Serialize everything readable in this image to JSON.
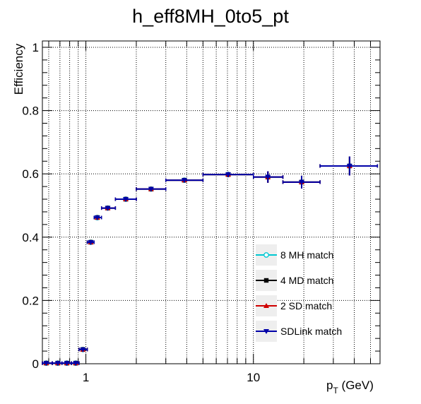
{
  "chart_data": {
    "type": "scatter",
    "title": "h_eff8MH_0to5_pt",
    "ylabel": "Efficiency",
    "xlabel_main": "p",
    "xlabel_sub": "T",
    "xlabel_unit": " (GeV)",
    "xscale": "log",
    "xlim": [
      0.55,
      57
    ],
    "ylim": [
      0,
      1.02
    ],
    "grid": true,
    "legend_position": "bottom-right",
    "x_tick_labels": [
      {
        "value": 1,
        "label": "1"
      },
      {
        "value": 10,
        "label": "10"
      }
    ],
    "y_tick_labels": [
      {
        "value": 0,
        "label": "0"
      },
      {
        "value": 0.2,
        "label": "0.2"
      },
      {
        "value": 0.4,
        "label": "0.4"
      },
      {
        "value": 0.6,
        "label": "0.6"
      },
      {
        "value": 0.8,
        "label": "0.8"
      },
      {
        "value": 1,
        "label": "1"
      }
    ],
    "series": [
      {
        "name": "8 MH match",
        "color": "#00c8d2",
        "marker": "open-circle",
        "points": [
          {
            "x": 0.58,
            "xlo": 0.55,
            "xhi": 0.63,
            "y": 0.002,
            "err": 0.001
          },
          {
            "x": 0.68,
            "xlo": 0.63,
            "xhi": 0.72,
            "y": 0.002,
            "err": 0.001
          },
          {
            "x": 0.77,
            "xlo": 0.72,
            "xhi": 0.82,
            "y": 0.002,
            "err": 0.001
          },
          {
            "x": 0.87,
            "xlo": 0.82,
            "xhi": 0.91,
            "y": 0.002,
            "err": 0.001
          },
          {
            "x": 0.96,
            "xlo": 0.91,
            "xhi": 1.02,
            "y": 0.045,
            "err": 0.004
          },
          {
            "x": 1.07,
            "xlo": 1.02,
            "xhi": 1.12,
            "y": 0.384,
            "err": 0.005
          },
          {
            "x": 1.17,
            "xlo": 1.12,
            "xhi": 1.24,
            "y": 0.462,
            "err": 0.005
          },
          {
            "x": 1.35,
            "xlo": 1.24,
            "xhi": 1.5,
            "y": 0.492,
            "err": 0.005
          },
          {
            "x": 1.73,
            "xlo": 1.5,
            "xhi": 2.0,
            "y": 0.52,
            "err": 0.005
          },
          {
            "x": 2.45,
            "xlo": 2.0,
            "xhi": 3.0,
            "y": 0.552,
            "err": 0.005
          },
          {
            "x": 3.87,
            "xlo": 3.0,
            "xhi": 5.0,
            "y": 0.58,
            "err": 0.006
          },
          {
            "x": 7.07,
            "xlo": 5.0,
            "xhi": 10.0,
            "y": 0.598,
            "err": 0.008
          },
          {
            "x": 12.2,
            "xlo": 10.0,
            "xhi": 15.0,
            "y": 0.59,
            "err": 0.018
          },
          {
            "x": 19.4,
            "xlo": 15.0,
            "xhi": 25.0,
            "y": 0.574,
            "err": 0.02
          },
          {
            "x": 37.5,
            "xlo": 25.0,
            "xhi": 55.0,
            "y": 0.625,
            "err": 0.03
          }
        ]
      },
      {
        "name": "4 MD match",
        "color": "#000000",
        "marker": "square",
        "points": [
          {
            "x": 0.58,
            "xlo": 0.55,
            "xhi": 0.63,
            "y": 0.002,
            "err": 0.001
          },
          {
            "x": 0.68,
            "xlo": 0.63,
            "xhi": 0.72,
            "y": 0.002,
            "err": 0.001
          },
          {
            "x": 0.77,
            "xlo": 0.72,
            "xhi": 0.82,
            "y": 0.002,
            "err": 0.001
          },
          {
            "x": 0.87,
            "xlo": 0.82,
            "xhi": 0.91,
            "y": 0.002,
            "err": 0.001
          },
          {
            "x": 0.96,
            "xlo": 0.91,
            "xhi": 1.02,
            "y": 0.045,
            "err": 0.004
          },
          {
            "x": 1.07,
            "xlo": 1.02,
            "xhi": 1.12,
            "y": 0.384,
            "err": 0.005
          },
          {
            "x": 1.17,
            "xlo": 1.12,
            "xhi": 1.24,
            "y": 0.462,
            "err": 0.005
          },
          {
            "x": 1.35,
            "xlo": 1.24,
            "xhi": 1.5,
            "y": 0.492,
            "err": 0.005
          },
          {
            "x": 1.73,
            "xlo": 1.5,
            "xhi": 2.0,
            "y": 0.52,
            "err": 0.005
          },
          {
            "x": 2.45,
            "xlo": 2.0,
            "xhi": 3.0,
            "y": 0.552,
            "err": 0.005
          },
          {
            "x": 3.87,
            "xlo": 3.0,
            "xhi": 5.0,
            "y": 0.58,
            "err": 0.006
          },
          {
            "x": 7.07,
            "xlo": 5.0,
            "xhi": 10.0,
            "y": 0.598,
            "err": 0.008
          },
          {
            "x": 12.2,
            "xlo": 10.0,
            "xhi": 15.0,
            "y": 0.59,
            "err": 0.018
          },
          {
            "x": 19.4,
            "xlo": 15.0,
            "xhi": 25.0,
            "y": 0.574,
            "err": 0.02
          },
          {
            "x": 37.5,
            "xlo": 25.0,
            "xhi": 55.0,
            "y": 0.625,
            "err": 0.03
          }
        ]
      },
      {
        "name": "2 SD match",
        "color": "#d00000",
        "marker": "triangle-up",
        "points": [
          {
            "x": 0.58,
            "xlo": 0.55,
            "xhi": 0.63,
            "y": 0.002,
            "err": 0.001
          },
          {
            "x": 0.68,
            "xlo": 0.63,
            "xhi": 0.72,
            "y": 0.002,
            "err": 0.001
          },
          {
            "x": 0.77,
            "xlo": 0.72,
            "xhi": 0.82,
            "y": 0.002,
            "err": 0.001
          },
          {
            "x": 0.87,
            "xlo": 0.82,
            "xhi": 0.91,
            "y": 0.002,
            "err": 0.001
          },
          {
            "x": 0.96,
            "xlo": 0.91,
            "xhi": 1.02,
            "y": 0.045,
            "err": 0.004
          },
          {
            "x": 1.07,
            "xlo": 1.02,
            "xhi": 1.12,
            "y": 0.384,
            "err": 0.005
          },
          {
            "x": 1.17,
            "xlo": 1.12,
            "xhi": 1.24,
            "y": 0.462,
            "err": 0.005
          },
          {
            "x": 1.35,
            "xlo": 1.24,
            "xhi": 1.5,
            "y": 0.492,
            "err": 0.005
          },
          {
            "x": 1.73,
            "xlo": 1.5,
            "xhi": 2.0,
            "y": 0.52,
            "err": 0.005
          },
          {
            "x": 2.45,
            "xlo": 2.0,
            "xhi": 3.0,
            "y": 0.552,
            "err": 0.005
          },
          {
            "x": 3.87,
            "xlo": 3.0,
            "xhi": 5.0,
            "y": 0.58,
            "err": 0.006
          },
          {
            "x": 7.07,
            "xlo": 5.0,
            "xhi": 10.0,
            "y": 0.598,
            "err": 0.008
          },
          {
            "x": 12.2,
            "xlo": 10.0,
            "xhi": 15.0,
            "y": 0.59,
            "err": 0.018
          },
          {
            "x": 19.4,
            "xlo": 15.0,
            "xhi": 25.0,
            "y": 0.574,
            "err": 0.02
          },
          {
            "x": 37.5,
            "xlo": 25.0,
            "xhi": 55.0,
            "y": 0.625,
            "err": 0.03
          }
        ]
      },
      {
        "name": "SDLink match",
        "color": "#0000a8",
        "marker": "triangle-down",
        "points": [
          {
            "x": 0.58,
            "xlo": 0.55,
            "xhi": 0.63,
            "y": 0.002,
            "err": 0.001
          },
          {
            "x": 0.68,
            "xlo": 0.63,
            "xhi": 0.72,
            "y": 0.002,
            "err": 0.001
          },
          {
            "x": 0.77,
            "xlo": 0.72,
            "xhi": 0.82,
            "y": 0.002,
            "err": 0.001
          },
          {
            "x": 0.87,
            "xlo": 0.82,
            "xhi": 0.91,
            "y": 0.002,
            "err": 0.001
          },
          {
            "x": 0.96,
            "xlo": 0.91,
            "xhi": 1.02,
            "y": 0.045,
            "err": 0.004
          },
          {
            "x": 1.07,
            "xlo": 1.02,
            "xhi": 1.12,
            "y": 0.384,
            "err": 0.005
          },
          {
            "x": 1.17,
            "xlo": 1.12,
            "xhi": 1.24,
            "y": 0.462,
            "err": 0.005
          },
          {
            "x": 1.35,
            "xlo": 1.24,
            "xhi": 1.5,
            "y": 0.492,
            "err": 0.005
          },
          {
            "x": 1.73,
            "xlo": 1.5,
            "xhi": 2.0,
            "y": 0.52,
            "err": 0.005
          },
          {
            "x": 2.45,
            "xlo": 2.0,
            "xhi": 3.0,
            "y": 0.552,
            "err": 0.005
          },
          {
            "x": 3.87,
            "xlo": 3.0,
            "xhi": 5.0,
            "y": 0.58,
            "err": 0.006
          },
          {
            "x": 7.07,
            "xlo": 5.0,
            "xhi": 10.0,
            "y": 0.598,
            "err": 0.008
          },
          {
            "x": 12.2,
            "xlo": 10.0,
            "xhi": 15.0,
            "y": 0.59,
            "err": 0.018
          },
          {
            "x": 19.4,
            "xlo": 15.0,
            "xhi": 25.0,
            "y": 0.574,
            "err": 0.02
          },
          {
            "x": 37.5,
            "xlo": 25.0,
            "xhi": 55.0,
            "y": 0.625,
            "err": 0.03
          }
        ]
      }
    ]
  }
}
